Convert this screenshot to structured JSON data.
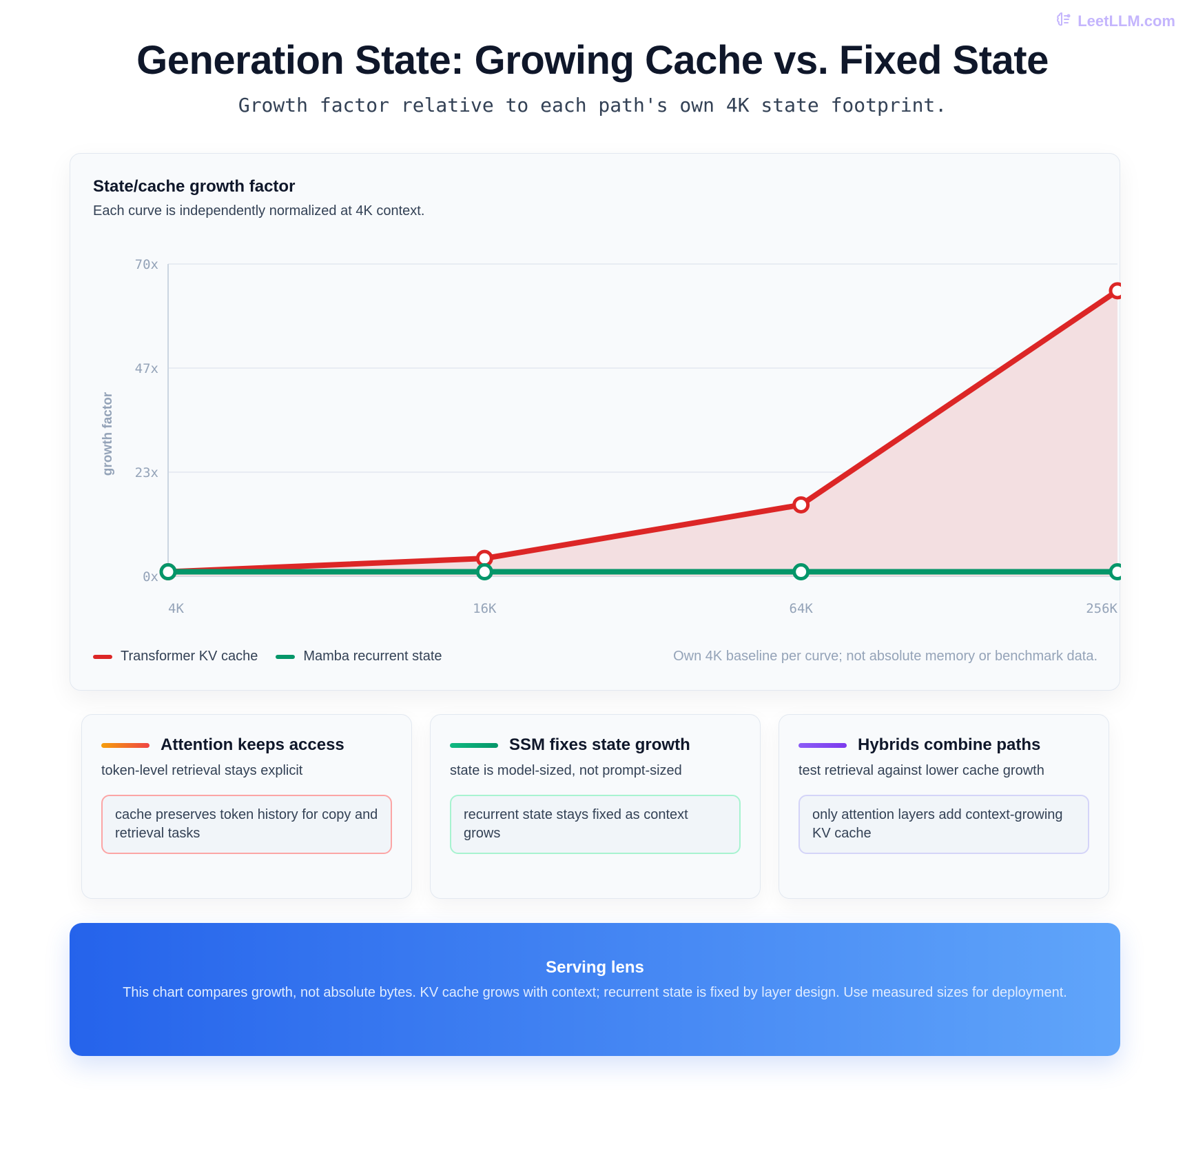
{
  "brand": {
    "name": "LeetLLM.com",
    "icon": "brain-icon"
  },
  "page": {
    "title": "Generation State: Growing Cache vs. Fixed State",
    "subtitle": "Growth factor relative to each path's own 4K state footprint."
  },
  "chart_card": {
    "title": "State/cache growth factor",
    "subtitle": "Each curve is independently normalized at 4K context.",
    "note": "Own 4K baseline per curve; not absolute memory or benchmark data."
  },
  "chart_data": {
    "type": "line",
    "x": [
      "4K",
      "16K",
      "64K",
      "256K"
    ],
    "ylabel": "growth factor",
    "xlabel": "",
    "y_ticks": [
      "0x",
      "23x",
      "47x",
      "70x"
    ],
    "ylim": [
      0,
      70
    ],
    "grid": true,
    "legend_position": "bottom-left",
    "series": [
      {
        "name": "Transformer KV cache",
        "values": [
          1,
          4,
          16,
          64
        ],
        "color": "#dc2626",
        "fill": "#f3dfe1"
      },
      {
        "name": "Mamba recurrent state",
        "values": [
          1,
          1,
          1,
          1
        ],
        "color": "#059669"
      }
    ]
  },
  "cards": [
    {
      "title": "Attention keeps access",
      "subtitle": "token-level retrieval stays explicit",
      "note": "cache preserves token history for copy and retrieval tasks",
      "bar_gradient": [
        "#f59e0b",
        "#ef4444"
      ],
      "note_border": "#fca5a5"
    },
    {
      "title": "SSM fixes state growth",
      "subtitle": "state is model-sized, not prompt-sized",
      "note": "recurrent state stays fixed as context grows",
      "bar_gradient": [
        "#10b981",
        "#059669"
      ],
      "note_border": "#a7f3d0"
    },
    {
      "title": "Hybrids combine paths",
      "subtitle": "test retrieval against lower cache growth",
      "note": "only attention layers add context-growing KV cache",
      "bar_gradient": [
        "#8b5cf6",
        "#7c3aed"
      ],
      "note_border": "#d4d4f8"
    }
  ],
  "banner": {
    "title": "Serving lens",
    "text": "This chart compares growth, not absolute bytes. KV cache grows with context; recurrent state is fixed by layer design. Use measured sizes for deployment."
  }
}
